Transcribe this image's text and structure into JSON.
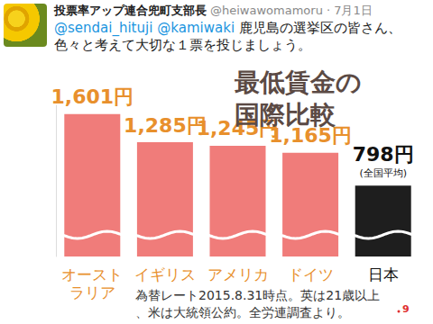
{
  "tweet": {
    "author": "投票率アップ連合兜町支部長",
    "handle": "@heiwawomamoru",
    "date": "· 7月1日",
    "reply_to": [
      "@sendai_hituji",
      "@kamiwaki"
    ],
    "text": "鹿児島の選挙区の皆さん、色々と考えて大切な１票を投じましょう。"
  },
  "chart_data": {
    "type": "bar",
    "title": "最低賃金の国際比較",
    "categories": [
      "オーストラリア",
      "イギリス",
      "アメリカ",
      "ドイツ",
      "日本"
    ],
    "values": [
      1601,
      1285,
      1245,
      1165,
      798
    ],
    "value_labels": [
      "1,601円",
      "1,285円",
      "1,245円",
      "1,165円",
      "798円"
    ],
    "value_annotations": [
      null,
      null,
      null,
      null,
      "(全国平均)"
    ],
    "colors": [
      "#f07c7a",
      "#f07c7a",
      "#f07c7a",
      "#f07c7a",
      "#1e1e1e"
    ],
    "data_labels": true,
    "ylim": [
      0,
      1700
    ],
    "yticks": [],
    "grid": false,
    "tick_labels": "x",
    "annotations": [
      "為替レート2015.8.31時点。英は21歳以上、米は大統領公約。全労連調査より。"
    ]
  },
  "page_number": 9
}
